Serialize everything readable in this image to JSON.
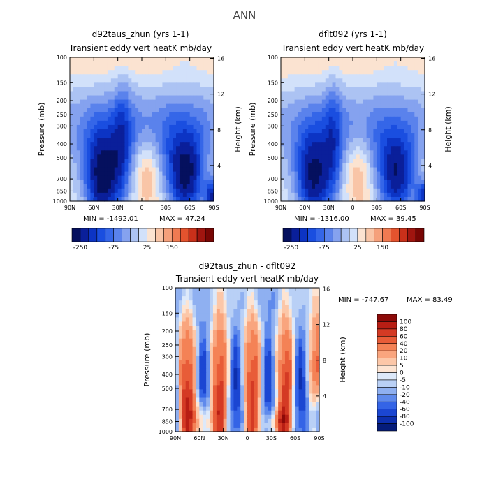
{
  "main_title": "ANN",
  "chart_data": [
    {
      "type": "heatmap",
      "title": "d92taus_zhun (yrs 1-1)",
      "subtitle": "Transient eddy vert heatK mb/day",
      "xlabel": "",
      "ylabel": "Pressure (mb)",
      "y2label": "Height (km)",
      "x_ticks": [
        "90N",
        "60N",
        "30N",
        "0",
        "30S",
        "60S",
        "90S"
      ],
      "y_ticks": [
        "100",
        "150",
        "200",
        "250",
        "300",
        "400",
        "500",
        "700",
        "850",
        "1000"
      ],
      "y2_ticks": [
        "16",
        "12",
        "8",
        "4"
      ],
      "min_text": "MIN = -1492.01",
      "max_text": "MAX =  47.24",
      "colorbar_labels": [
        "-250",
        "-75",
        "25",
        "150"
      ],
      "colors": [
        "#05105e",
        "#0a1f9a",
        "#0c34c4",
        "#1a4ee0",
        "#3566e8",
        "#5a82ec",
        "#85a2ef",
        "#acc3f3",
        "#d2e1fa",
        "#fbe3d1",
        "#f9c5a7",
        "#f5a07b",
        "#ef7a52",
        "#e4532e",
        "#c9301a",
        "#a0150f",
        "#780604"
      ],
      "field": "diag1"
    },
    {
      "type": "heatmap",
      "title": "dflt092 (yrs 1-1)",
      "subtitle": "Transient eddy vert heatK mb/day",
      "xlabel": "",
      "ylabel": "Pressure (mb)",
      "y2label": "Height (km)",
      "x_ticks": [
        "90N",
        "60N",
        "30N",
        "0",
        "30S",
        "60S",
        "90S"
      ],
      "y_ticks": [
        "100",
        "150",
        "200",
        "250",
        "300",
        "400",
        "500",
        "700",
        "850",
        "1000"
      ],
      "y2_ticks": [
        "16",
        "12",
        "8",
        "4"
      ],
      "min_text": "MIN = -1316.00",
      "max_text": "MAX =  39.45",
      "colorbar_labels": [
        "-250",
        "-75",
        "25",
        "150"
      ],
      "colors": [
        "#05105e",
        "#0a1f9a",
        "#0c34c4",
        "#1a4ee0",
        "#3566e8",
        "#5a82ec",
        "#85a2ef",
        "#acc3f3",
        "#d2e1fa",
        "#fbe3d1",
        "#f9c5a7",
        "#f5a07b",
        "#ef7a52",
        "#e4532e",
        "#c9301a",
        "#a0150f",
        "#780604"
      ],
      "field": "diag2"
    },
    {
      "type": "heatmap",
      "title": "d92taus_zhun - dflt092",
      "subtitle": "Transient eddy vert heatK mb/day",
      "xlabel": "",
      "ylabel": "Pressure (mb)",
      "y2label": "Height (km)",
      "x_ticks": [
        "90N",
        "60N",
        "30N",
        "0",
        "30S",
        "60S",
        "90S"
      ],
      "y_ticks": [
        "100",
        "150",
        "200",
        "250",
        "300",
        "400",
        "500",
        "700",
        "850",
        "1000"
      ],
      "y2_ticks": [
        "16",
        "12",
        "8",
        "4"
      ],
      "min_text": "MIN = -747.67",
      "max_text": "MAX =  83.49",
      "colorbar_labels": [
        "100",
        "80",
        "60",
        "40",
        "20",
        "10",
        "5",
        "0",
        "-5",
        "-10",
        "-20",
        "-40",
        "-60",
        "-80",
        "-100"
      ],
      "colors": [
        "#8c0a08",
        "#b81e14",
        "#d43a24",
        "#e85c38",
        "#f48256",
        "#f9a57e",
        "#fcc7a8",
        "#fde4d2",
        "#dde9fa",
        "#b9d0f6",
        "#8fb0f1",
        "#5f8aec",
        "#3464e6",
        "#1b46d2",
        "#0d2fae",
        "#051c7a"
      ],
      "field": "diff"
    }
  ]
}
